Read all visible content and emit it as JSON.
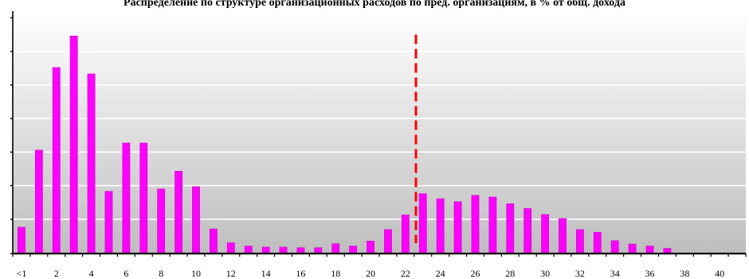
{
  "chart_data": {
    "type": "bar",
    "title": "Распределение по структуре организационных расходов по пред. организациям, в % от общ. дохода",
    "xlabel": "",
    "ylabel": "",
    "categories": [
      "<1",
      "1",
      "2",
      "3",
      "4",
      "5",
      "6",
      "7",
      "8",
      "9",
      "10",
      "11",
      "12",
      "13",
      "14",
      "15",
      "16",
      "17",
      "18",
      "19",
      "20",
      "21",
      "22",
      "23",
      "24",
      "25",
      "26",
      "27",
      "28",
      "29",
      "30",
      "31",
      "32",
      "33",
      "34",
      "35",
      "36",
      "37",
      "38",
      "39",
      "40",
      "41"
    ],
    "tick_labels": [
      "<1",
      "2",
      "4",
      "6",
      "8",
      "10",
      "12",
      "14",
      "16",
      "18",
      "20",
      "22",
      "24",
      "26",
      "28",
      "30",
      "32",
      "34",
      "36",
      "38",
      "40"
    ],
    "values": [
      7.6,
      30.6,
      55.2,
      64.6,
      53.3,
      18.3,
      32.7,
      32.7,
      19.0,
      24.3,
      19.7,
      7.1,
      3.0,
      2.0,
      1.7,
      1.7,
      1.5,
      1.5,
      2.7,
      2.0,
      3.5,
      6.9,
      11.3,
      17.6,
      16.1,
      15.2,
      17.1,
      16.6,
      14.6,
      13.2,
      11.4,
      10.2,
      6.9,
      6.1,
      3.6,
      2.6,
      2.0,
      1.3,
      0,
      0,
      0,
      0
    ],
    "ylim": [
      0,
      72
    ],
    "y_gridlines": [
      10,
      20,
      30,
      40,
      50,
      60
    ],
    "reference_line": {
      "x": 22.6,
      "style": "dashed"
    },
    "colors": {
      "bar": "#ff00ff",
      "bar_edge": "#cc00cc",
      "reference_line": "#ff0000",
      "gridline": "#ffffff",
      "background_top": "#ffffff",
      "background_bottom": "#bebebe",
      "axis": "#000000"
    },
    "grid": true,
    "legend": "none"
  }
}
